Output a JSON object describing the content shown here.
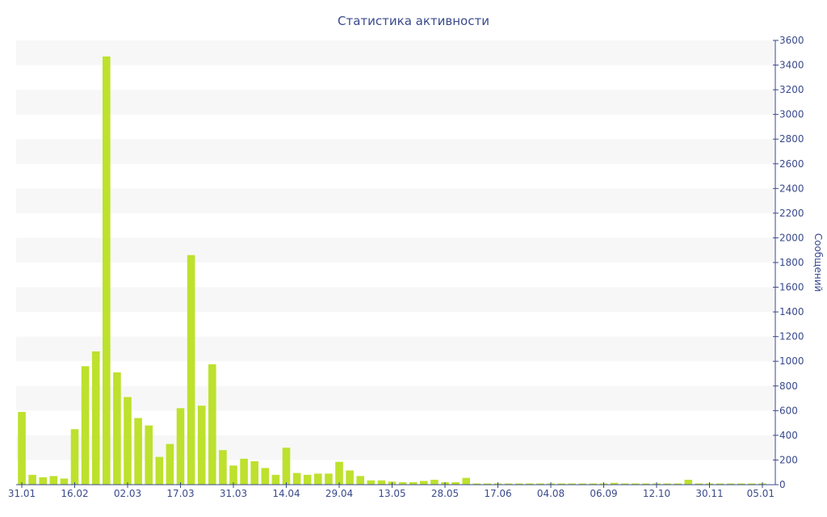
{
  "chart_data": {
    "type": "bar",
    "title": "Статистика активности",
    "ylabel": "Сообщений",
    "xlabel": "",
    "ylim": [
      0,
      3600
    ],
    "y_ticks": [
      0,
      200,
      400,
      600,
      800,
      1000,
      1200,
      1400,
      1600,
      1800,
      2000,
      2200,
      2400,
      2600,
      2800,
      3000,
      3200,
      3400,
      3600
    ],
    "y_axis_position": "right",
    "x_tick_labels": [
      "31.01",
      "16.02",
      "02.03",
      "17.03",
      "31.03",
      "14.04",
      "29.04",
      "13.05",
      "28.05",
      "17.06",
      "04.08",
      "06.09",
      "12.10",
      "30.11",
      "05.01"
    ],
    "x_tick_bar_index": [
      0,
      5,
      10,
      15,
      20,
      25,
      30,
      35,
      40,
      45,
      50,
      55,
      60,
      65,
      70
    ],
    "values": [
      590,
      80,
      60,
      70,
      50,
      450,
      960,
      1080,
      3470,
      910,
      710,
      540,
      480,
      225,
      330,
      620,
      1860,
      640,
      975,
      280,
      155,
      210,
      190,
      135,
      80,
      300,
      95,
      80,
      90,
      90,
      185,
      115,
      70,
      35,
      35,
      25,
      20,
      20,
      30,
      40,
      20,
      20,
      55,
      10,
      10,
      10,
      10,
      10,
      10,
      10,
      10,
      10,
      10,
      10,
      10,
      10,
      15,
      10,
      10,
      10,
      10,
      10,
      10,
      40,
      10,
      10,
      10,
      10,
      10,
      10,
      10
    ],
    "bar_color": "#bde12d",
    "band_color": "#f7f7f7",
    "axis_color": "#3a4a8c",
    "grid": "alternating horizontal bands"
  }
}
